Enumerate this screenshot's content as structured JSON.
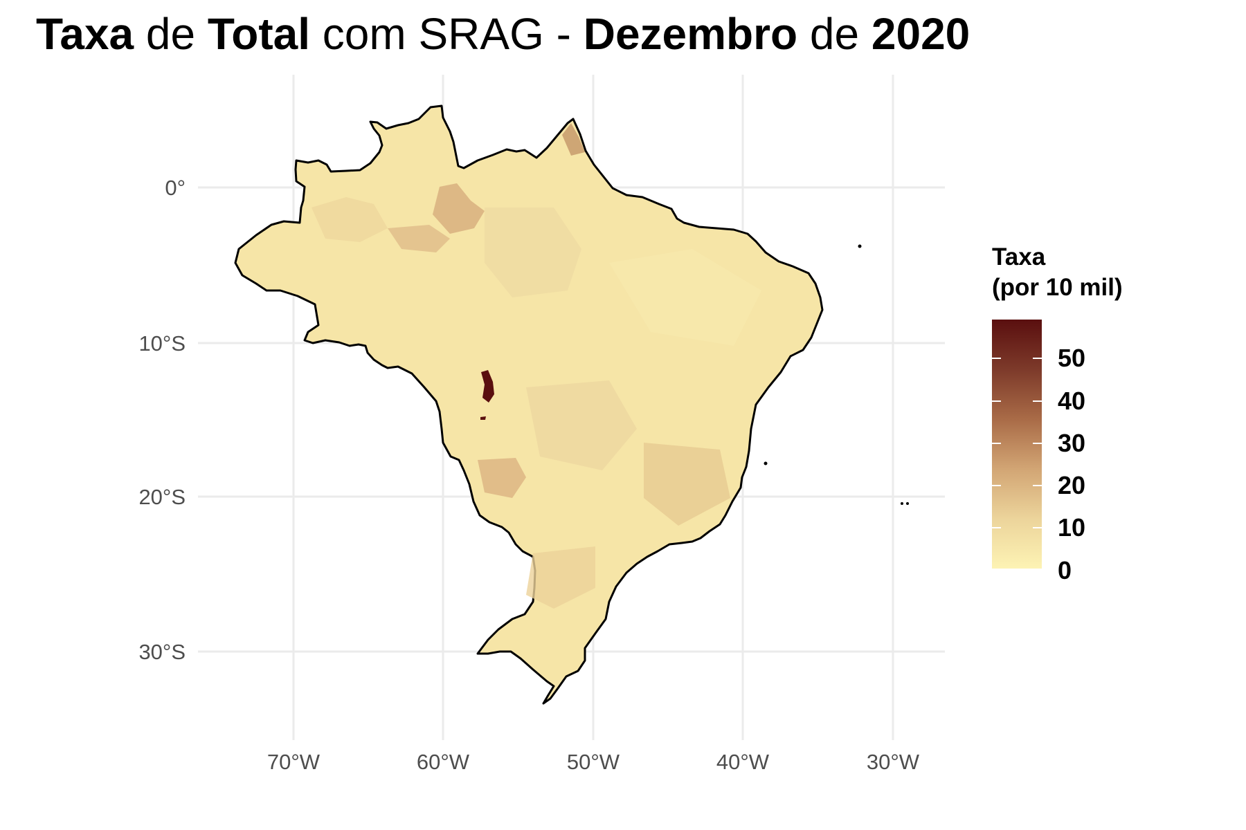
{
  "title": {
    "parts": [
      {
        "text": "Taxa",
        "bold": true
      },
      {
        "text": "de",
        "bold": false
      },
      {
        "text": "Total",
        "bold": true
      },
      {
        "text": "com SRAG -",
        "bold": false
      },
      {
        "text": "Dezembro",
        "bold": true
      },
      {
        "text": "de",
        "bold": false
      },
      {
        "text": "2020",
        "bold": true
      }
    ]
  },
  "axes": {
    "x_ticks": [
      "70°W",
      "60°W",
      "50°W",
      "40°W",
      "30°W"
    ],
    "y_ticks": [
      "0°",
      "10°S",
      "20°S",
      "30°S"
    ]
  },
  "legend": {
    "title_line1": "Taxa",
    "title_line2": "(por 10 mil)",
    "labels": [
      "50",
      "40",
      "30",
      "20",
      "10",
      "0"
    ],
    "color_low": "#fdf3b4",
    "color_mid": "#d2a574",
    "color_high": "#5a0f0f"
  },
  "colors": {
    "land_base": "#f6e5a7",
    "border": "#000000",
    "grid": "#ebebeb"
  }
}
